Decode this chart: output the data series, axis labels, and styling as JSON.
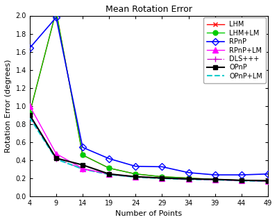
{
  "title": "Mean Rotation Error",
  "xlabel": "Number of Points",
  "ylabel": "Rotation Error (degrees)",
  "x": [
    4,
    9,
    14,
    19,
    24,
    29,
    34,
    39,
    44,
    49
  ],
  "xticks": [
    4,
    9,
    14,
    19,
    24,
    29,
    34,
    39,
    44,
    49
  ],
  "ylim": [
    0,
    2.0
  ],
  "yticks": [
    0,
    0.2,
    0.4,
    0.6,
    0.8,
    1.0,
    1.2,
    1.4,
    1.6,
    1.8,
    2.0
  ],
  "series": [
    {
      "name": "LHM",
      "y": [
        0.92,
        2.05,
        0.455,
        0.31,
        0.245,
        0.215,
        0.2,
        0.185,
        0.175,
        0.17
      ],
      "color": "#ff0000",
      "linestyle": "-",
      "marker": "x",
      "markersize": 5,
      "linewidth": 1.0,
      "zorder": 4
    },
    {
      "name": "LHM+LM",
      "y": [
        0.92,
        2.05,
        0.455,
        0.31,
        0.245,
        0.215,
        0.2,
        0.185,
        0.175,
        0.17
      ],
      "color": "#00cc00",
      "linestyle": "-",
      "marker": "o",
      "markersize": 5,
      "markerfacecolor": "#00cc00",
      "linewidth": 1.0,
      "zorder": 4
    },
    {
      "name": "RPnP",
      "y": [
        1.64,
        1.98,
        0.54,
        0.415,
        0.33,
        0.325,
        0.26,
        0.235,
        0.235,
        0.245
      ],
      "color": "#0000ff",
      "linestyle": "-",
      "marker": "D",
      "markersize": 5,
      "markerfacecolor": "none",
      "markeredgecolor": "#0000ff",
      "linewidth": 1.2,
      "zorder": 5
    },
    {
      "name": "RPnP+LM",
      "y": [
        1.0,
        0.47,
        0.305,
        0.245,
        0.215,
        0.2,
        0.19,
        0.182,
        0.173,
        0.168
      ],
      "color": "#ff00ff",
      "linestyle": "-",
      "marker": "^",
      "markersize": 6,
      "markerfacecolor": "#ff00ff",
      "linewidth": 1.0,
      "zorder": 4
    },
    {
      "name": "DLS+++",
      "y": [
        0.88,
        0.415,
        0.3,
        0.24,
        0.21,
        0.197,
        0.187,
        0.181,
        0.172,
        0.166
      ],
      "color": "#cc00cc",
      "linestyle": "-.",
      "marker": "+",
      "markersize": 6,
      "linewidth": 0.9,
      "zorder": 3
    },
    {
      "name": "OPnP",
      "y": [
        0.9,
        0.42,
        0.345,
        0.245,
        0.215,
        0.2,
        0.19,
        0.185,
        0.175,
        0.17
      ],
      "color": "#000000",
      "linestyle": "-",
      "marker": "s",
      "markersize": 5,
      "markerfacecolor": "#000000",
      "markeredgecolor": "#000000",
      "linewidth": 1.5,
      "zorder": 5
    },
    {
      "name": "OPnP+LM",
      "y": [
        0.87,
        0.41,
        0.3,
        0.24,
        0.21,
        0.196,
        0.186,
        0.181,
        0.171,
        0.165
      ],
      "color": "#00cccc",
      "linestyle": "--",
      "marker": "none",
      "markersize": 5,
      "linewidth": 1.5,
      "zorder": 3
    }
  ],
  "background_color": "#ffffff",
  "legend_fontsize": 7,
  "title_fontsize": 9,
  "axis_fontsize": 8,
  "tick_fontsize": 7
}
